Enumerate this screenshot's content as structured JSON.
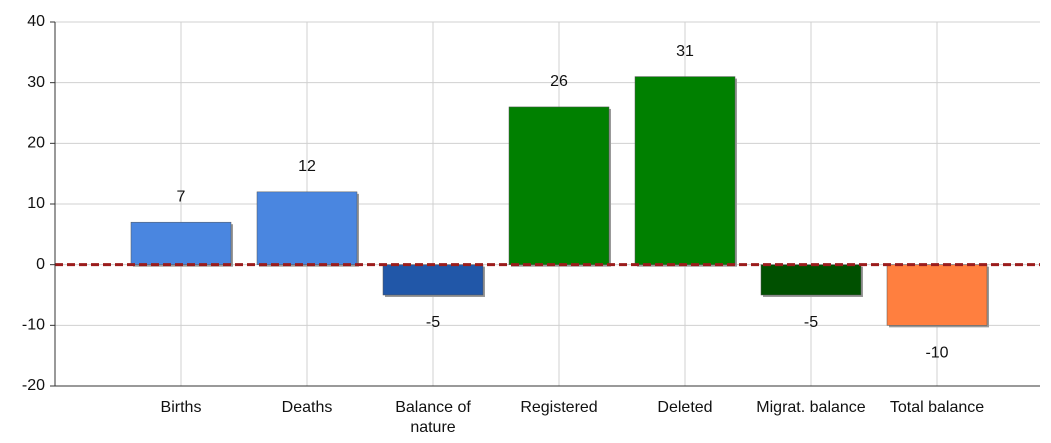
{
  "chart_data": {
    "type": "bar",
    "categories": [
      "Births",
      "Deaths",
      "Balance of nature",
      "Registered",
      "Deleted",
      "Migrat. balance",
      "Total balance"
    ],
    "values": [
      7,
      12,
      -5,
      26,
      31,
      -5,
      -10
    ],
    "colors": [
      "#4a86e0",
      "#4a86e0",
      "#2157a8",
      "#008000",
      "#008000",
      "#005000",
      "#ff7f3f"
    ],
    "ylim": [
      -20,
      40
    ],
    "yticks": [
      -20,
      -10,
      0,
      10,
      20,
      30,
      40
    ],
    "grid": true,
    "reference_line": {
      "value": 0,
      "color": "#9b1c1c",
      "style": "dashed"
    }
  }
}
